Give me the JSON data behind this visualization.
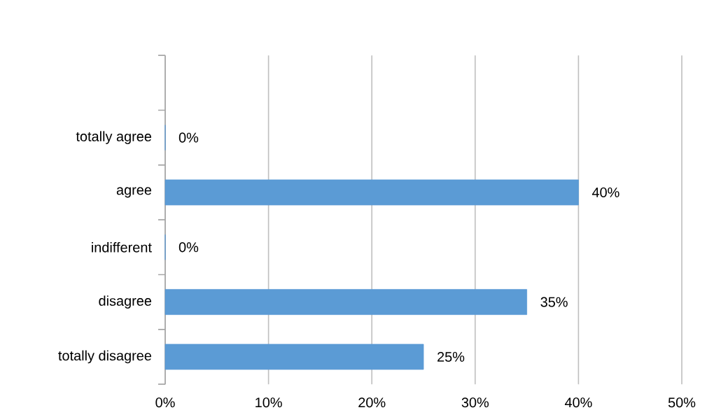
{
  "chart_data": {
    "type": "bar",
    "orientation": "horizontal",
    "categories": [
      null,
      "totally agree",
      "agree",
      "indifferent",
      "disagree",
      "totally disagree"
    ],
    "values": [
      null,
      0,
      40,
      0,
      35,
      25
    ],
    "value_labels": [
      null,
      "0%",
      "40%",
      "0%",
      "35%",
      "25%"
    ],
    "color": "#5b9bd5",
    "xlim": [
      0,
      50
    ],
    "xticks": [
      {
        "value": 0,
        "label": "0%"
      },
      {
        "value": 10,
        "label": "10%"
      },
      {
        "value": 20,
        "label": "20%"
      },
      {
        "value": 30,
        "label": "30%"
      },
      {
        "value": 40,
        "label": "40%"
      },
      {
        "value": 50,
        "label": "50%"
      }
    ],
    "grid": "x"
  }
}
